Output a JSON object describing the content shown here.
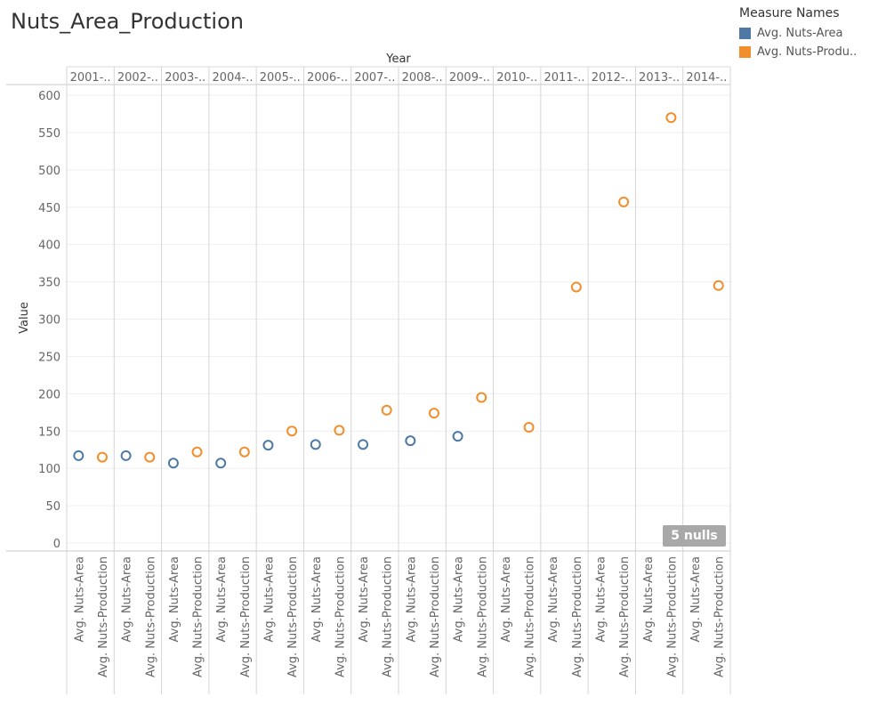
{
  "title": "Nuts_Area_Production",
  "legend": {
    "title": "Measure Names",
    "items": [
      {
        "label": "Avg. Nuts-Area",
        "color": "#4e79a7"
      },
      {
        "label": "Avg. Nuts-Produ..",
        "color": "#f28e2b"
      }
    ]
  },
  "nulls_label": "5 nulls",
  "chart_data": {
    "type": "scatter",
    "title": "Nuts_Area_Production",
    "column_header": "Year",
    "ylabel": "Value",
    "ylim": [
      0,
      600
    ],
    "yticks": [
      0,
      50,
      100,
      150,
      200,
      250,
      300,
      350,
      400,
      450,
      500,
      550,
      600
    ],
    "years": [
      "2001-..",
      "2002-..",
      "2003-..",
      "2004-..",
      "2005-..",
      "2006-..",
      "2007-..",
      "2008-..",
      "2009-..",
      "2010-..",
      "2011-..",
      "2012-..",
      "2013-..",
      "2014-.."
    ],
    "measures": [
      "Avg. Nuts-Area",
      "Avg. Nuts-Production"
    ],
    "series": [
      {
        "name": "Avg. Nuts-Area",
        "color": "#4e79a7",
        "values": [
          117,
          117,
          107,
          107,
          131,
          132,
          132,
          137,
          143,
          null,
          null,
          null,
          null,
          null
        ]
      },
      {
        "name": "Avg. Nuts-Production",
        "color": "#f28e2b",
        "values": [
          115,
          115,
          122,
          122,
          150,
          151,
          178,
          174,
          195,
          155,
          343,
          457,
          570,
          345
        ]
      }
    ],
    "grid": true,
    "legend_position": "top-right"
  }
}
